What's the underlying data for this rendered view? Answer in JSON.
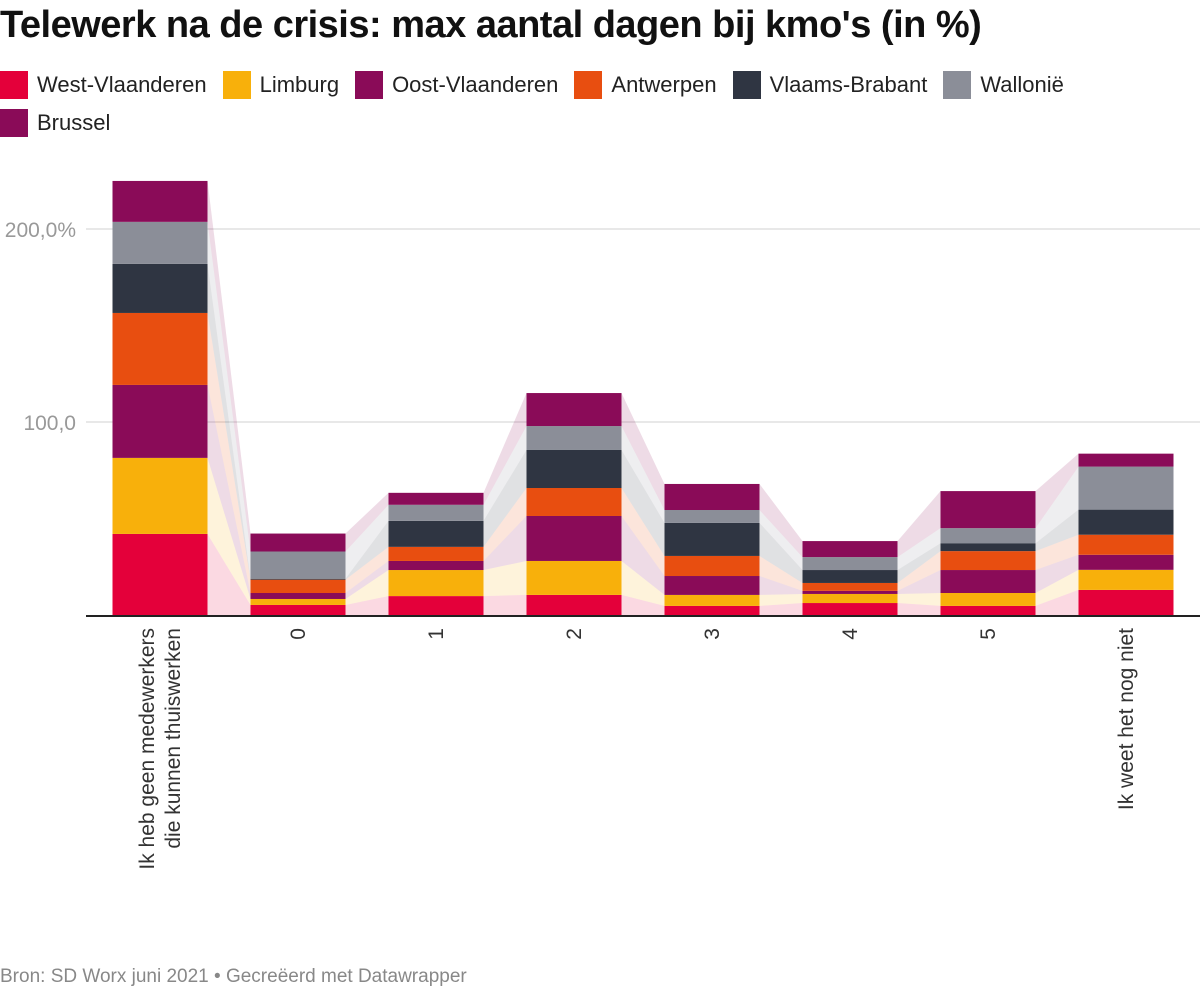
{
  "title": "Telewerk na de crisis: max aantal dagen bij kmo's (in %)",
  "footer": "Bron: SD Worx juni 2021 • Gecreëerd met Datawrapper",
  "chart_data": {
    "type": "bar",
    "stacked": true,
    "title": "Telewerk na de crisis: max aantal dagen bij kmo's (in %)",
    "categories": [
      "Ik heb geen medewerkers die kunnen thuiswerken",
      "0",
      "1",
      "2",
      "3",
      "4",
      "5",
      "Ik weet het nog niet"
    ],
    "category_lines": [
      [
        "Ik heb geen medewerkers",
        "die kunnen thuiswerken"
      ],
      [
        "0"
      ],
      [
        "1"
      ],
      [
        "2"
      ],
      [
        "3"
      ],
      [
        "4"
      ],
      [
        "5"
      ],
      [
        "Ik weet het nog niet"
      ]
    ],
    "ylim": [
      0,
      230
    ],
    "yticks": [
      {
        "value": 100,
        "label": "100,0"
      },
      {
        "value": 200,
        "label": "200,0%"
      }
    ],
    "grid": true,
    "legend": "top",
    "series": [
      {
        "name": "West-Vlaanderen",
        "color": "#e4003a",
        "values": [
          42.0,
          5.2,
          9.8,
          10.4,
          4.7,
          6.2,
          4.7,
          13.0
        ]
      },
      {
        "name": "Limburg",
        "color": "#f8b00b",
        "values": [
          39.4,
          3.1,
          13.5,
          17.6,
          5.7,
          4.7,
          6.7,
          10.4
        ]
      },
      {
        "name": "Oost-Vlaanderen",
        "color": "#8a0b58",
        "values": [
          37.8,
          3.1,
          4.7,
          23.3,
          9.8,
          1.6,
          11.9,
          7.8
        ]
      },
      {
        "name": "Antwerpen",
        "color": "#e84e10",
        "values": [
          37.3,
          6.9,
          7.3,
          14.5,
          10.4,
          4.1,
          9.8,
          10.4
        ]
      },
      {
        "name": "Vlaams-Brabant",
        "color": "#2f3542",
        "values": [
          25.4,
          0.5,
          13.5,
          19.7,
          17.1,
          6.7,
          4.1,
          13.0
        ]
      },
      {
        "name": "Wallonië",
        "color": "#8b8e98",
        "values": [
          21.8,
          14.1,
          8.3,
          12.4,
          6.7,
          6.7,
          7.8,
          22.3
        ]
      },
      {
        "name": "Brussel",
        "color": "#8a0b58",
        "values": [
          21.2,
          9.3,
          6.2,
          17.1,
          13.5,
          8.3,
          19.2,
          6.7
        ]
      }
    ]
  }
}
